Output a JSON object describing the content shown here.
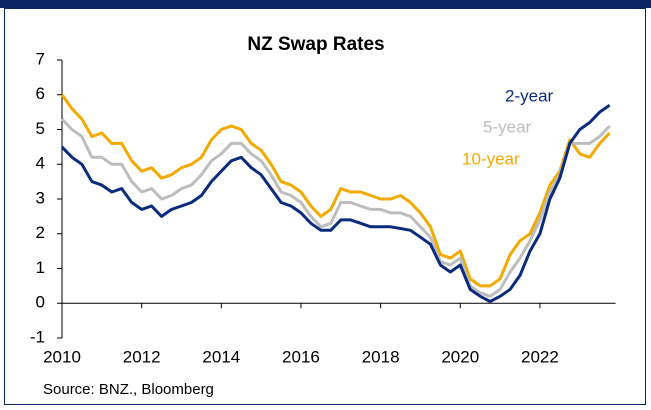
{
  "chart_data": {
    "type": "line",
    "title": "NZ Swap Rates",
    "source": "Source: BNZ., Bloomberg",
    "x": [
      2010,
      2010.25,
      2010.5,
      2010.75,
      2011,
      2011.25,
      2011.5,
      2011.75,
      2012,
      2012.25,
      2012.5,
      2012.75,
      2013,
      2013.25,
      2013.5,
      2013.75,
      2014,
      2014.25,
      2014.5,
      2014.75,
      2015,
      2015.25,
      2015.5,
      2015.75,
      2016,
      2016.25,
      2016.5,
      2016.75,
      2017,
      2017.25,
      2017.5,
      2017.75,
      2018,
      2018.25,
      2018.5,
      2018.75,
      2019,
      2019.25,
      2019.5,
      2019.75,
      2020,
      2020.25,
      2020.5,
      2020.75,
      2021,
      2021.25,
      2021.5,
      2021.75,
      2022,
      2022.25,
      2022.5,
      2022.75,
      2023,
      2023.25,
      2023.5,
      2023.75
    ],
    "series": [
      {
        "name": "2-year",
        "color": "#0b2c7c",
        "values": [
          4.5,
          4.2,
          4.0,
          3.5,
          3.4,
          3.2,
          3.3,
          2.9,
          2.7,
          2.8,
          2.5,
          2.7,
          2.8,
          2.9,
          3.1,
          3.5,
          3.8,
          4.1,
          4.2,
          3.9,
          3.7,
          3.3,
          2.9,
          2.8,
          2.6,
          2.3,
          2.1,
          2.1,
          2.4,
          2.4,
          2.3,
          2.2,
          2.2,
          2.2,
          2.15,
          2.1,
          1.9,
          1.7,
          1.1,
          0.9,
          1.1,
          0.4,
          0.2,
          0.05,
          0.2,
          0.4,
          0.8,
          1.5,
          2.0,
          3.0,
          3.6,
          4.6,
          5.0,
          5.2,
          5.5,
          5.7
        ]
      },
      {
        "name": "5-year",
        "color": "#bdbdbd",
        "values": [
          5.3,
          5.0,
          4.8,
          4.2,
          4.2,
          4.0,
          4.0,
          3.5,
          3.2,
          3.3,
          3.0,
          3.1,
          3.3,
          3.4,
          3.7,
          4.1,
          4.3,
          4.6,
          4.6,
          4.3,
          4.1,
          3.7,
          3.2,
          3.1,
          2.9,
          2.5,
          2.2,
          2.3,
          2.9,
          2.9,
          2.8,
          2.7,
          2.7,
          2.6,
          2.6,
          2.5,
          2.2,
          1.9,
          1.2,
          1.1,
          1.3,
          0.5,
          0.3,
          0.2,
          0.4,
          0.9,
          1.3,
          1.8,
          2.4,
          3.2,
          3.7,
          4.6,
          4.6,
          4.6,
          4.8,
          5.1
        ]
      },
      {
        "name": "10-year",
        "color": "#f2a900",
        "values": [
          6.0,
          5.6,
          5.3,
          4.8,
          4.9,
          4.6,
          4.6,
          4.1,
          3.8,
          3.9,
          3.6,
          3.7,
          3.9,
          4.0,
          4.2,
          4.7,
          5.0,
          5.1,
          5.0,
          4.6,
          4.4,
          4.0,
          3.5,
          3.4,
          3.2,
          2.8,
          2.5,
          2.7,
          3.3,
          3.2,
          3.2,
          3.1,
          3.0,
          3.0,
          3.1,
          2.9,
          2.6,
          2.2,
          1.4,
          1.3,
          1.5,
          0.7,
          0.5,
          0.5,
          0.7,
          1.4,
          1.8,
          2.0,
          2.6,
          3.4,
          3.8,
          4.7,
          4.3,
          4.2,
          4.6,
          4.9
        ]
      }
    ],
    "xlim": [
      2010,
      2023.9
    ],
    "xticks": [
      2010,
      2012,
      2014,
      2016,
      2018,
      2020,
      2022
    ],
    "ylim": [
      -1,
      7
    ],
    "yticks": [
      -1,
      0,
      1,
      2,
      3,
      4,
      5,
      6,
      7
    ],
    "grid": false
  }
}
